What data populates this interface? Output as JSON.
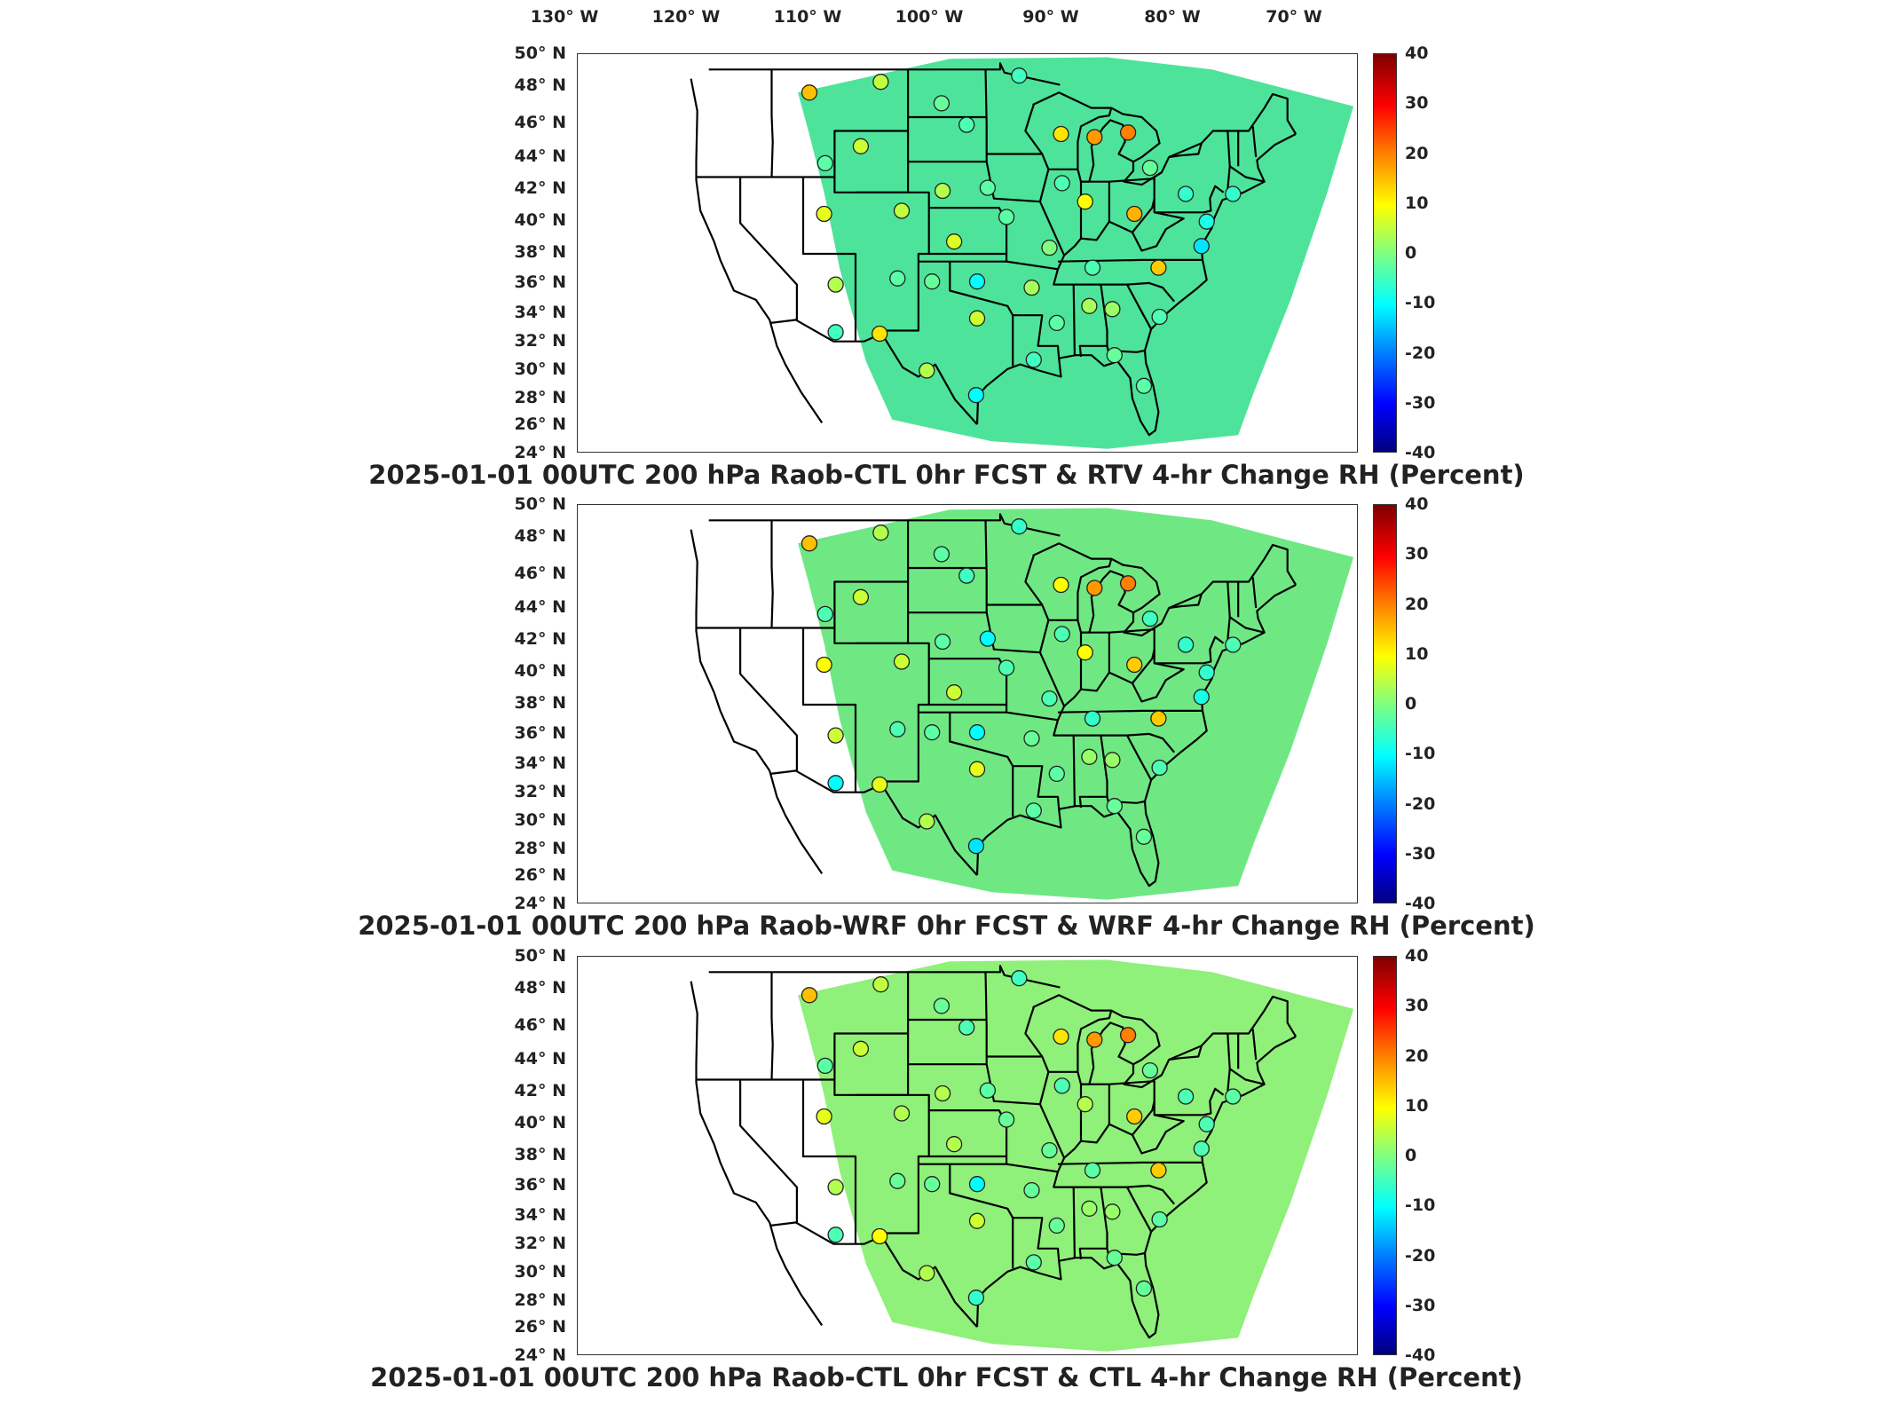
{
  "longitude_labels": [
    "130° W",
    "120° W",
    "110° W",
    "100° W",
    "90° W",
    "80° W",
    "70° W"
  ],
  "latitude_labels": [
    "50° N",
    "48° N",
    "46° N",
    "44° N",
    "42° N",
    "40° N",
    "38° N",
    "36° N",
    "34° N",
    "32° N",
    "30° N",
    "28° N",
    "26° N",
    "24° N"
  ],
  "colorbar_ticks": [
    "40",
    "30",
    "20",
    "10",
    "0",
    "-10",
    "-20",
    "-30",
    "-40"
  ],
  "colorbar_range": [
    -40,
    40
  ],
  "colormap": [
    "#00007f",
    "#0000ff",
    "#0080ff",
    "#00ffff",
    "#80ff80",
    "#ffff00",
    "#ff8000",
    "#ff0000",
    "#7f0000"
  ],
  "panels": [
    {
      "title": "2025-01-01 00UTC 200 hPa Raob-CTL 0hr FCST & RTV 4-hr Change RH (Percent)",
      "field_base_color": "#4ee39a",
      "stations": [
        {
          "lon": -113.4,
          "lat": 47.5,
          "value": 15
        },
        {
          "lon": -106.6,
          "lat": 48.2,
          "value": 5
        },
        {
          "lon": -100.8,
          "lat": 46.8,
          "value": -2
        },
        {
          "lon": -93.4,
          "lat": 48.6,
          "value": -5
        },
        {
          "lon": -108.5,
          "lat": 44.0,
          "value": 6
        },
        {
          "lon": -111.9,
          "lat": 42.9,
          "value": -3
        },
        {
          "lon": -98.4,
          "lat": 45.4,
          "value": -4
        },
        {
          "lon": -89.4,
          "lat": 44.8,
          "value": 12
        },
        {
          "lon": -86.2,
          "lat": 44.6,
          "value": 18
        },
        {
          "lon": -83.0,
          "lat": 44.9,
          "value": 20
        },
        {
          "lon": -80.9,
          "lat": 42.6,
          "value": -2
        },
        {
          "lon": -100.7,
          "lat": 41.1,
          "value": 4
        },
        {
          "lon": -96.4,
          "lat": 41.3,
          "value": -3
        },
        {
          "lon": -89.3,
          "lat": 41.6,
          "value": -4
        },
        {
          "lon": -87.1,
          "lat": 40.4,
          "value": 10
        },
        {
          "lon": -82.4,
          "lat": 39.6,
          "value": 16
        },
        {
          "lon": -77.5,
          "lat": 40.9,
          "value": -6
        },
        {
          "lon": -112.0,
          "lat": 39.6,
          "value": 8
        },
        {
          "lon": -104.6,
          "lat": 39.8,
          "value": 5
        },
        {
          "lon": -99.6,
          "lat": 37.8,
          "value": 7
        },
        {
          "lon": -94.6,
          "lat": 39.4,
          "value": -3
        },
        {
          "lon": -90.5,
          "lat": 37.4,
          "value": 0
        },
        {
          "lon": -86.4,
          "lat": 36.1,
          "value": -4
        },
        {
          "lon": -80.1,
          "lat": 36.1,
          "value": 14
        },
        {
          "lon": -76.0,
          "lat": 37.5,
          "value": -12
        },
        {
          "lon": -75.5,
          "lat": 39.1,
          "value": -8
        },
        {
          "lon": -73.0,
          "lat": 40.9,
          "value": -6
        },
        {
          "lon": -110.9,
          "lat": 35.0,
          "value": 4
        },
        {
          "lon": -105.0,
          "lat": 35.4,
          "value": -3
        },
        {
          "lon": -101.7,
          "lat": 35.2,
          "value": -2
        },
        {
          "lon": -97.4,
          "lat": 35.2,
          "value": -10
        },
        {
          "lon": -92.2,
          "lat": 34.8,
          "value": 3
        },
        {
          "lon": -86.7,
          "lat": 33.6,
          "value": 3
        },
        {
          "lon": -84.5,
          "lat": 33.4,
          "value": 2
        },
        {
          "lon": -89.8,
          "lat": 32.5,
          "value": -3
        },
        {
          "lon": -80.0,
          "lat": 32.9,
          "value": -4
        },
        {
          "lon": -110.9,
          "lat": 31.9,
          "value": -5
        },
        {
          "lon": -106.7,
          "lat": 31.8,
          "value": 12
        },
        {
          "lon": -97.4,
          "lat": 32.8,
          "value": 6
        },
        {
          "lon": -92.0,
          "lat": 30.1,
          "value": -5
        },
        {
          "lon": -102.2,
          "lat": 29.4,
          "value": 4
        },
        {
          "lon": -97.5,
          "lat": 27.8,
          "value": -10
        },
        {
          "lon": -81.5,
          "lat": 28.4,
          "value": -3
        },
        {
          "lon": -84.3,
          "lat": 30.4,
          "value": -2
        }
      ]
    },
    {
      "title": "2025-01-01 00UTC 200 hPa Raob-WRF 0hr FCST & WRF 4-hr Change RH (Percent)",
      "field_base_color": "#6fe884",
      "stations": [
        {
          "lon": -113.4,
          "lat": 47.5,
          "value": 15
        },
        {
          "lon": -106.6,
          "lat": 48.2,
          "value": 4
        },
        {
          "lon": -100.8,
          "lat": 46.8,
          "value": -3
        },
        {
          "lon": -93.4,
          "lat": 48.6,
          "value": -6
        },
        {
          "lon": -108.5,
          "lat": 44.0,
          "value": 6
        },
        {
          "lon": -111.9,
          "lat": 42.9,
          "value": -4
        },
        {
          "lon": -98.4,
          "lat": 45.4,
          "value": -5
        },
        {
          "lon": -89.4,
          "lat": 44.8,
          "value": 10
        },
        {
          "lon": -86.2,
          "lat": 44.6,
          "value": 18
        },
        {
          "lon": -83.0,
          "lat": 44.9,
          "value": 20
        },
        {
          "lon": -80.9,
          "lat": 42.6,
          "value": -5
        },
        {
          "lon": -100.7,
          "lat": 41.1,
          "value": -3
        },
        {
          "lon": -96.4,
          "lat": 41.3,
          "value": -10
        },
        {
          "lon": -89.3,
          "lat": 41.6,
          "value": -4
        },
        {
          "lon": -87.1,
          "lat": 40.4,
          "value": 10
        },
        {
          "lon": -82.4,
          "lat": 39.6,
          "value": 14
        },
        {
          "lon": -77.5,
          "lat": 40.9,
          "value": -6
        },
        {
          "lon": -112.0,
          "lat": 39.6,
          "value": 10
        },
        {
          "lon": -104.6,
          "lat": 39.8,
          "value": 6
        },
        {
          "lon": -99.6,
          "lat": 37.8,
          "value": 6
        },
        {
          "lon": -94.6,
          "lat": 39.4,
          "value": -4
        },
        {
          "lon": -90.5,
          "lat": 37.4,
          "value": -4
        },
        {
          "lon": -86.4,
          "lat": 36.1,
          "value": -6
        },
        {
          "lon": -80.1,
          "lat": 36.1,
          "value": 14
        },
        {
          "lon": -76.0,
          "lat": 37.5,
          "value": -8
        },
        {
          "lon": -75.5,
          "lat": 39.1,
          "value": -6
        },
        {
          "lon": -73.0,
          "lat": 40.9,
          "value": -4
        },
        {
          "lon": -110.9,
          "lat": 35.0,
          "value": 6
        },
        {
          "lon": -105.0,
          "lat": 35.4,
          "value": -4
        },
        {
          "lon": -101.7,
          "lat": 35.2,
          "value": -3
        },
        {
          "lon": -97.4,
          "lat": 35.2,
          "value": -10
        },
        {
          "lon": -92.2,
          "lat": 34.8,
          "value": -2
        },
        {
          "lon": -86.7,
          "lat": 33.6,
          "value": 2
        },
        {
          "lon": -84.5,
          "lat": 33.4,
          "value": 2
        },
        {
          "lon": -89.8,
          "lat": 32.5,
          "value": -3
        },
        {
          "lon": -80.0,
          "lat": 32.9,
          "value": -4
        },
        {
          "lon": -110.9,
          "lat": 31.9,
          "value": -10
        },
        {
          "lon": -106.7,
          "lat": 31.8,
          "value": 8
        },
        {
          "lon": -97.4,
          "lat": 32.8,
          "value": 8
        },
        {
          "lon": -92.0,
          "lat": 30.1,
          "value": -3
        },
        {
          "lon": -102.2,
          "lat": 29.4,
          "value": 4
        },
        {
          "lon": -97.5,
          "lat": 27.8,
          "value": -12
        },
        {
          "lon": -81.5,
          "lat": 28.4,
          "value": -2
        },
        {
          "lon": -84.3,
          "lat": 30.4,
          "value": -2
        }
      ]
    },
    {
      "title": "2025-01-01 00UTC 200 hPa Raob-CTL 0hr FCST & CTL 4-hr Change RH (Percent)",
      "field_base_color": "#8ff07a",
      "stations": [
        {
          "lon": -113.4,
          "lat": 47.5,
          "value": 15
        },
        {
          "lon": -106.6,
          "lat": 48.2,
          "value": 5
        },
        {
          "lon": -100.8,
          "lat": 46.8,
          "value": -2
        },
        {
          "lon": -93.4,
          "lat": 48.6,
          "value": -5
        },
        {
          "lon": -108.5,
          "lat": 44.0,
          "value": 6
        },
        {
          "lon": -111.9,
          "lat": 42.9,
          "value": -3
        },
        {
          "lon": -98.4,
          "lat": 45.4,
          "value": -4
        },
        {
          "lon": -89.4,
          "lat": 44.8,
          "value": 12
        },
        {
          "lon": -86.2,
          "lat": 44.6,
          "value": 18
        },
        {
          "lon": -83.0,
          "lat": 44.9,
          "value": 20
        },
        {
          "lon": -80.9,
          "lat": 42.6,
          "value": -2
        },
        {
          "lon": -100.7,
          "lat": 41.1,
          "value": 4
        },
        {
          "lon": -96.4,
          "lat": 41.3,
          "value": -3
        },
        {
          "lon": -89.3,
          "lat": 41.6,
          "value": -4
        },
        {
          "lon": -87.1,
          "lat": 40.4,
          "value": 4
        },
        {
          "lon": -82.4,
          "lat": 39.6,
          "value": 14
        },
        {
          "lon": -77.5,
          "lat": 40.9,
          "value": -4
        },
        {
          "lon": -112.0,
          "lat": 39.6,
          "value": 8
        },
        {
          "lon": -104.6,
          "lat": 39.8,
          "value": 4
        },
        {
          "lon": -99.6,
          "lat": 37.8,
          "value": 4
        },
        {
          "lon": -94.6,
          "lat": 39.4,
          "value": -2
        },
        {
          "lon": -90.5,
          "lat": 37.4,
          "value": -2
        },
        {
          "lon": -86.4,
          "lat": 36.1,
          "value": -3
        },
        {
          "lon": -80.1,
          "lat": 36.1,
          "value": 14
        },
        {
          "lon": -76.0,
          "lat": 37.5,
          "value": -4
        },
        {
          "lon": -75.5,
          "lat": 39.1,
          "value": -4
        },
        {
          "lon": -73.0,
          "lat": 40.9,
          "value": -3
        },
        {
          "lon": -110.9,
          "lat": 35.0,
          "value": 4
        },
        {
          "lon": -105.0,
          "lat": 35.4,
          "value": -2
        },
        {
          "lon": -101.7,
          "lat": 35.2,
          "value": -2
        },
        {
          "lon": -97.4,
          "lat": 35.2,
          "value": -10
        },
        {
          "lon": -92.2,
          "lat": 34.8,
          "value": -2
        },
        {
          "lon": -86.7,
          "lat": 33.6,
          "value": 2
        },
        {
          "lon": -84.5,
          "lat": 33.4,
          "value": 2
        },
        {
          "lon": -89.8,
          "lat": 32.5,
          "value": -2
        },
        {
          "lon": -80.0,
          "lat": 32.9,
          "value": -3
        },
        {
          "lon": -110.9,
          "lat": 31.9,
          "value": -4
        },
        {
          "lon": -106.7,
          "lat": 31.8,
          "value": 10
        },
        {
          "lon": -97.4,
          "lat": 32.8,
          "value": 6
        },
        {
          "lon": -92.0,
          "lat": 30.1,
          "value": -3
        },
        {
          "lon": -102.2,
          "lat": 29.4,
          "value": 4
        },
        {
          "lon": -97.5,
          "lat": 27.8,
          "value": -6
        },
        {
          "lon": -81.5,
          "lat": 28.4,
          "value": -2
        },
        {
          "lon": -84.3,
          "lat": 30.4,
          "value": -2
        }
      ]
    }
  ]
}
